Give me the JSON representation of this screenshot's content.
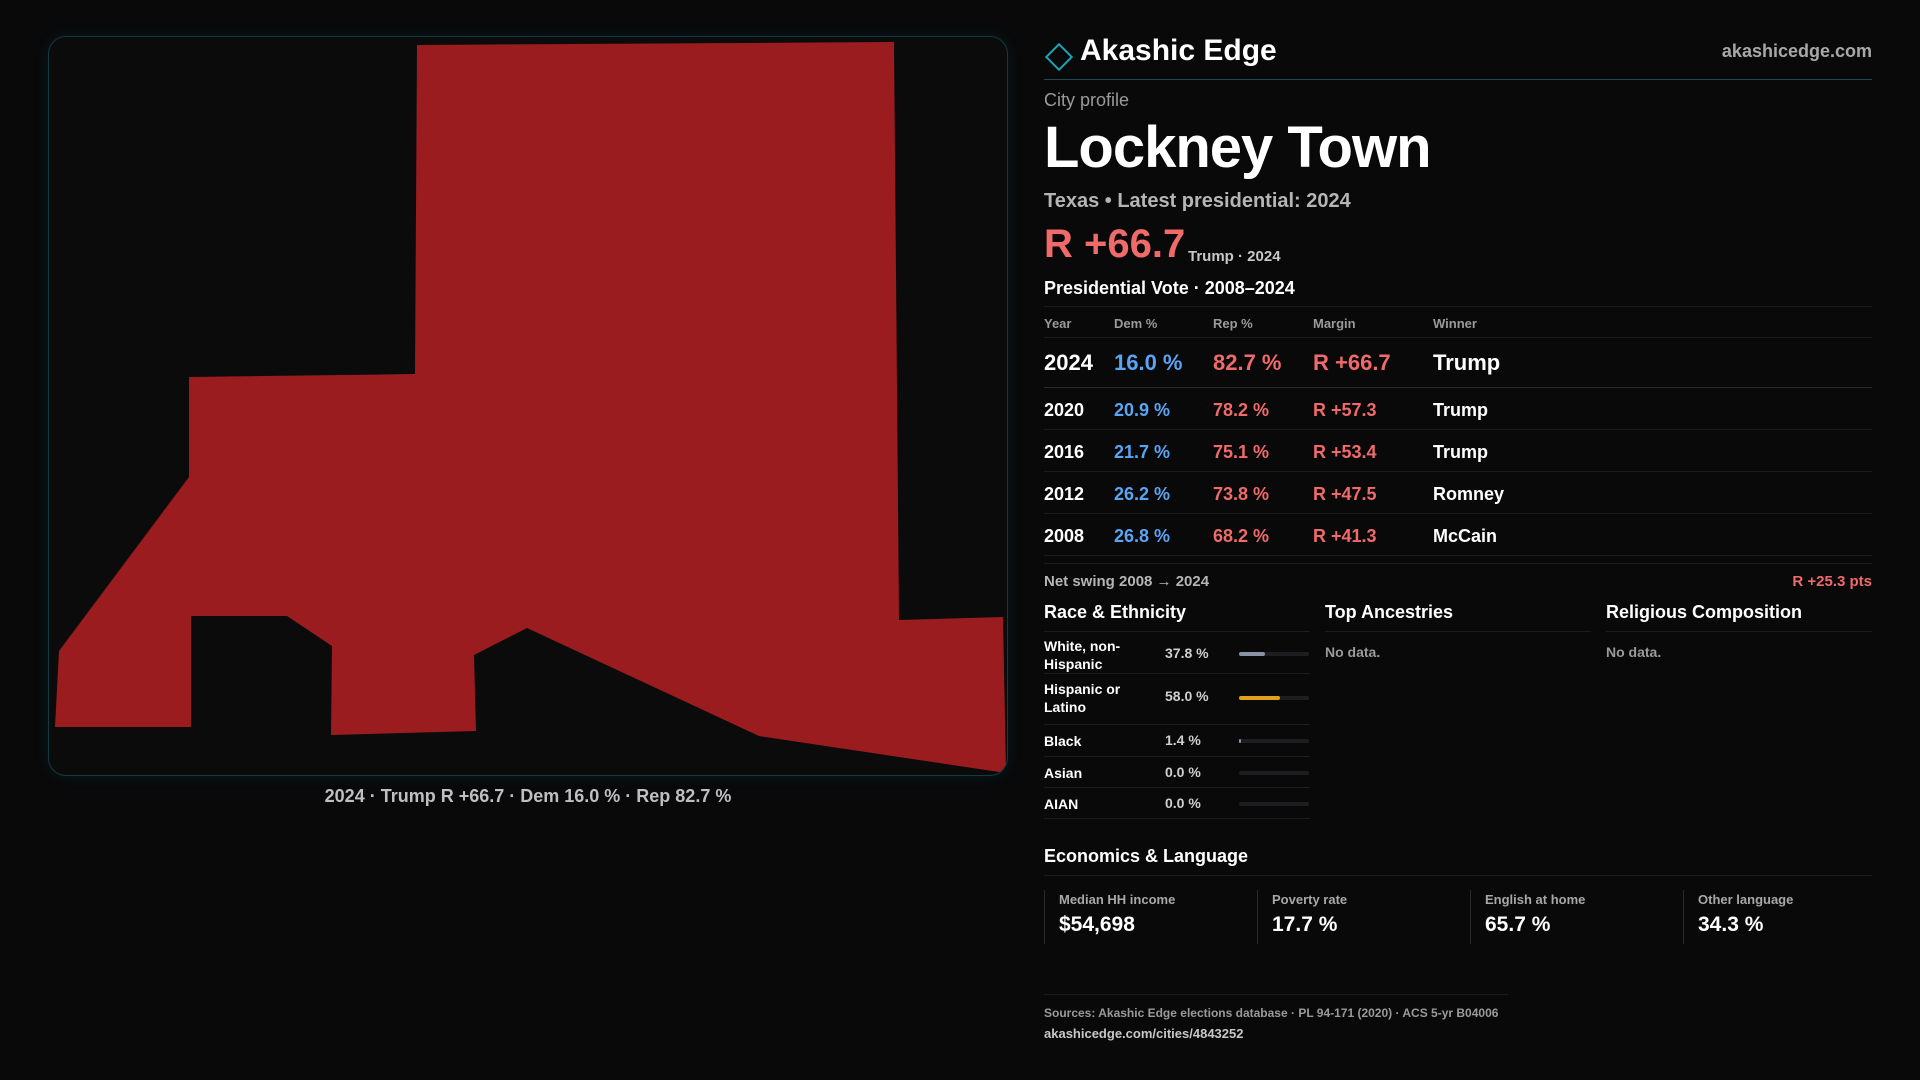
{
  "map": {
    "fill_color": "#9b1c1f",
    "caption": "2024 · Trump R +66.7 · Dem 16.0 % · Rep 82.7 %"
  },
  "brand": {
    "name": "Akashic Edge",
    "url": "akashicedge.com",
    "logo_icon": "diamond-icon",
    "accent": "#1aa5b5"
  },
  "profile": {
    "eyebrow": "City profile",
    "title": "Lockney Town",
    "subline": "Texas • Latest presidential: 2024",
    "margin": "R +66.7",
    "margin_detail": "Trump · 2024"
  },
  "presidential": {
    "title": "Presidential Vote · 2008–2024",
    "headers": {
      "year": "Year",
      "dem": "Dem %",
      "rep": "Rep %",
      "margin": "Margin",
      "winner": "Winner"
    },
    "rows": [
      {
        "year": "2024",
        "dem": "16.0 %",
        "rep": "82.7 %",
        "margin": "R +66.7",
        "winner": "Trump"
      },
      {
        "year": "2020",
        "dem": "20.9 %",
        "rep": "78.2 %",
        "margin": "R +57.3",
        "winner": "Trump"
      },
      {
        "year": "2016",
        "dem": "21.7 %",
        "rep": "75.1 %",
        "margin": "R +53.4",
        "winner": "Trump"
      },
      {
        "year": "2012",
        "dem": "26.2 %",
        "rep": "73.8 %",
        "margin": "R +47.5",
        "winner": "Romney"
      },
      {
        "year": "2008",
        "dem": "26.8 %",
        "rep": "68.2 %",
        "margin": "R +41.3",
        "winner": "McCain"
      }
    ],
    "swing_label": "Net swing 2008 → 2024",
    "swing_value": "R +25.3 pts"
  },
  "race": {
    "title": "Race & Ethnicity",
    "rows": [
      {
        "name": "White, non-Hispanic",
        "pct": "37.8 %",
        "value": 0.378,
        "color": "#8a93a6"
      },
      {
        "name": "Hispanic or Latino",
        "pct": "58.0 %",
        "value": 0.58,
        "color": "#e1a11a"
      },
      {
        "name": "Black",
        "pct": "1.4 %",
        "value": 0.014,
        "color": "#8a93a6"
      },
      {
        "name": "Asian",
        "pct": "0.0 %",
        "value": 0.0,
        "color": "#8a93a6"
      },
      {
        "name": "AIAN",
        "pct": "0.0 %",
        "value": 0.0,
        "color": "#8a93a6"
      }
    ]
  },
  "ancestries": {
    "title": "Top Ancestries",
    "empty": "No data."
  },
  "religion": {
    "title": "Religious Composition",
    "empty": "No data."
  },
  "economics": {
    "title": "Economics & Language",
    "stats": [
      {
        "label": "Median HH income",
        "value": "$54,698"
      },
      {
        "label": "Poverty rate",
        "value": "17.7 %"
      },
      {
        "label": "English at home",
        "value": "65.7 %"
      },
      {
        "label": "Other language",
        "value": "34.3 %"
      }
    ]
  },
  "footer": {
    "sources": "Sources: Akashic Edge elections database · PL 94-171 (2020) · ACS 5-yr B04006",
    "page_url": "akashicedge.com/cities/4843252"
  }
}
